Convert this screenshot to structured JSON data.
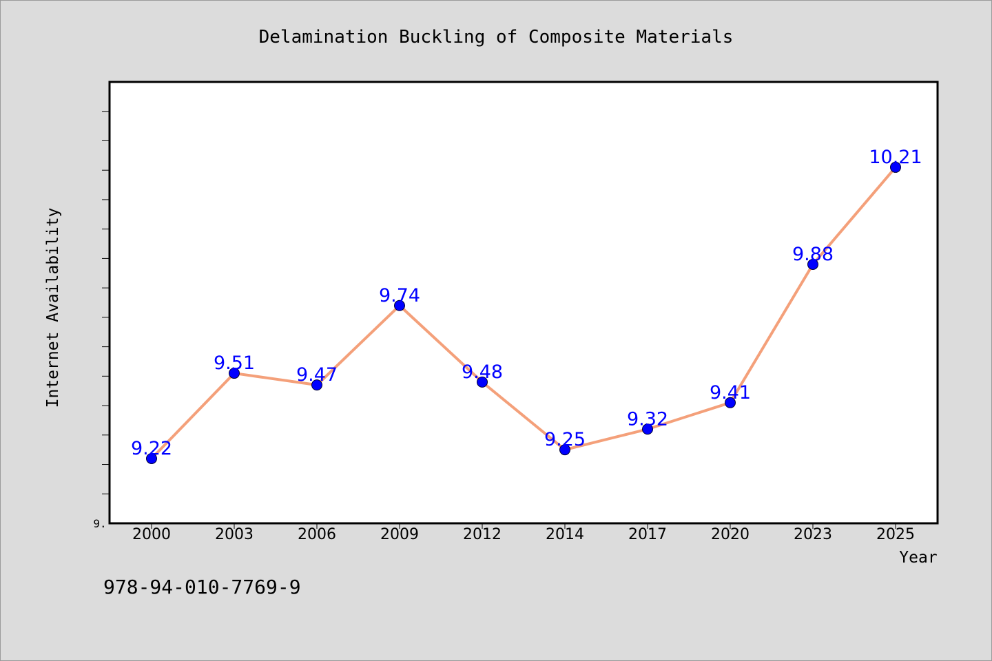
{
  "chart_data": {
    "type": "line",
    "title": "Delamination Buckling of Composite Materials",
    "xlabel": "Year",
    "ylabel": "Internet Availability",
    "categories": [
      "2000",
      "2003",
      "2006",
      "2009",
      "2012",
      "2014",
      "2017",
      "2020",
      "2023",
      "2025"
    ],
    "series": [
      {
        "values": [
          9.22,
          9.51,
          9.47,
          9.74,
          9.48,
          9.25,
          9.32,
          9.41,
          9.88,
          10.21
        ],
        "labels": [
          "9.22",
          "9.51",
          "9.47",
          "9.74",
          "9.48",
          "9.25",
          "9.32",
          "9.41",
          "9.88",
          "10.21"
        ],
        "line_color": "#f4a07a",
        "marker_color": "#0000ff"
      }
    ],
    "ylim": [
      9.0,
      10.5
    ],
    "y_tick_step": 0.1,
    "y_tick_labels": [
      {
        "value": 9.0,
        "label": "9."
      }
    ],
    "grid": false,
    "legend": "none"
  },
  "footer": {
    "isbn": "978-94-010-7769-9"
  },
  "colors": {
    "background": "#dcdcdc",
    "plot_background": "#ffffff"
  }
}
